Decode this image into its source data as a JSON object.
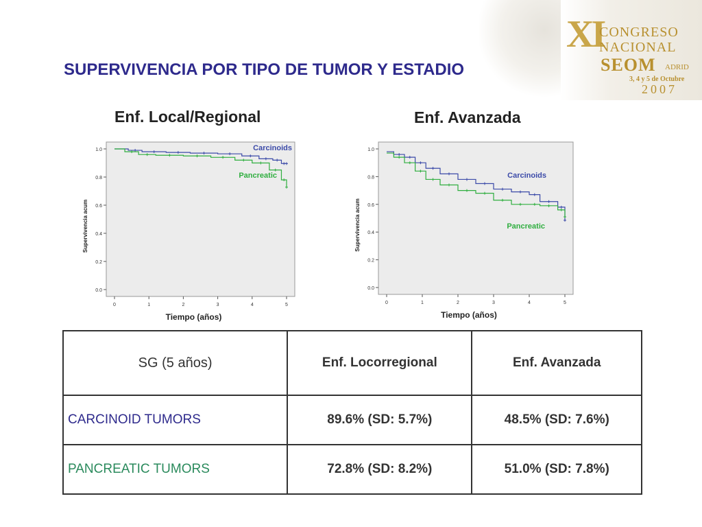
{
  "slide_title": "SUPERVIVENCIA POR TIPO DE TUMOR Y ESTADIO",
  "logo": {
    "roman": "XI",
    "line1": "CONGRESO",
    "line2": "NACIONAL",
    "org": "SEOM",
    "city": "ADRID",
    "dates": "3, 4 y 5 de Octubre",
    "year": "2007"
  },
  "colors": {
    "title": "#2e2a8c",
    "carcinoids": "#3b4aa8",
    "pancreatic": "#2fae3f",
    "plot_bg": "#ececec"
  },
  "chart_data": [
    {
      "type": "line",
      "title": "Enf. Local/Regional",
      "xlabel": "Tiempo (años)",
      "ylabel": "Supervivencia acum",
      "xlim": [
        0,
        5
      ],
      "ylim": [
        0,
        1
      ],
      "xticks": [
        "0",
        "1",
        "2",
        "3",
        "4",
        "5"
      ],
      "yticks": [
        "0.0",
        "0.2",
        "0.4",
        "0.6",
        "0.8",
        "1.0"
      ],
      "series": [
        {
          "name": "Carcinoids",
          "step": true,
          "x": [
            0,
            0.4,
            0.8,
            1.5,
            2.2,
            3.0,
            3.7,
            4.2,
            4.6,
            4.85,
            5.0
          ],
          "y": [
            1.0,
            0.99,
            0.98,
            0.975,
            0.97,
            0.965,
            0.95,
            0.93,
            0.92,
            0.896,
            0.896
          ]
        },
        {
          "name": "Pancreatic",
          "step": true,
          "x": [
            0,
            0.3,
            0.7,
            1.2,
            2.0,
            2.8,
            3.5,
            4.0,
            4.5,
            4.85,
            5.0
          ],
          "y": [
            1.0,
            0.98,
            0.96,
            0.955,
            0.95,
            0.94,
            0.92,
            0.9,
            0.85,
            0.78,
            0.728
          ]
        }
      ]
    },
    {
      "type": "line",
      "title": "Enf. Avanzada",
      "xlabel": "Tiempo (años)",
      "ylabel": "Supervivencia acum",
      "xlim": [
        0,
        5
      ],
      "ylim": [
        0,
        1
      ],
      "xticks": [
        "0",
        "1",
        "2",
        "3",
        "4",
        "5"
      ],
      "yticks": [
        "0.0",
        "0.2",
        "0.4",
        "0.6",
        "0.8",
        "1.0"
      ],
      "series": [
        {
          "name": "Carcinoids",
          "step": true,
          "x": [
            0,
            0.2,
            0.5,
            0.8,
            1.1,
            1.5,
            2.0,
            2.5,
            3.0,
            3.5,
            4.0,
            4.3,
            4.8,
            5.0
          ],
          "y": [
            0.98,
            0.96,
            0.94,
            0.9,
            0.86,
            0.82,
            0.78,
            0.75,
            0.71,
            0.69,
            0.67,
            0.62,
            0.58,
            0.485
          ]
        },
        {
          "name": "Pancreatic",
          "step": true,
          "x": [
            0,
            0.2,
            0.5,
            0.8,
            1.1,
            1.5,
            2.0,
            2.5,
            3.0,
            3.5,
            4.0,
            4.3,
            4.8,
            5.0
          ],
          "y": [
            0.97,
            0.94,
            0.9,
            0.84,
            0.78,
            0.74,
            0.7,
            0.68,
            0.63,
            0.6,
            0.6,
            0.59,
            0.56,
            0.51
          ]
        }
      ]
    }
  ],
  "table": {
    "headers": [
      "SG (5 años)",
      "Enf. Locorregional",
      "Enf. Avanzada"
    ],
    "rows": [
      {
        "label": "CARCINOID TUMORS",
        "local": "89.6% (SD: 5.7%)",
        "advanced": "48.5% (SD: 7.6%)"
      },
      {
        "label": "PANCREATIC TUMORS",
        "local": "72.8% (SD: 8.2%)",
        "advanced": "51.0% (SD: 7.8%)"
      }
    ]
  }
}
